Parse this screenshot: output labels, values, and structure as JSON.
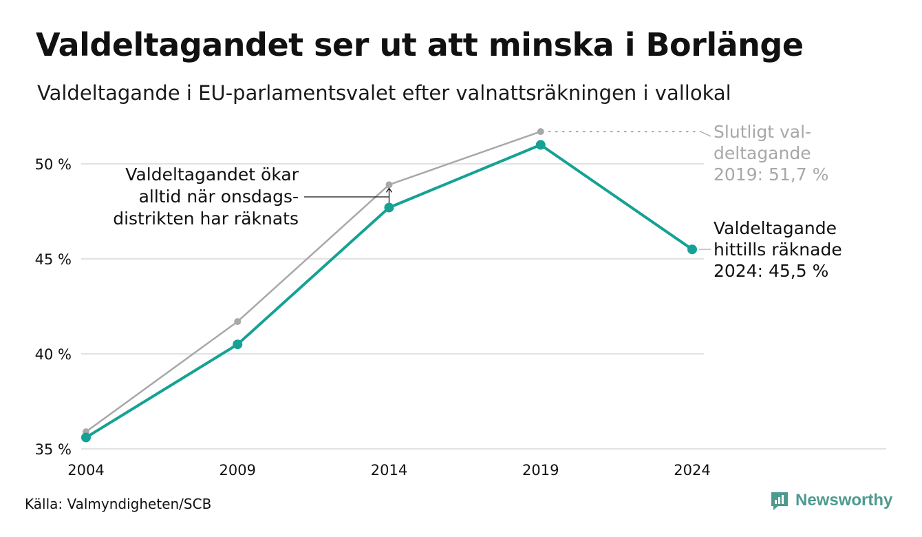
{
  "header": {
    "title": "Valdeltagandet ser ut att minska i Borlänge",
    "subtitle": "Valdeltagande i EU-parlamentsvalet efter valnattsräkningen i vallokal"
  },
  "footer": {
    "source": "Källa: Valmyndigheten/SCB",
    "brand": "Newsworthy"
  },
  "colors": {
    "accent": "#14a294",
    "final_line": "#a8a8a8",
    "grid": "#e2e2e2",
    "brand": "#4e9a8f"
  },
  "chart_data": {
    "type": "line",
    "x": [
      2004,
      2009,
      2014,
      2019,
      2024
    ],
    "ylim": [
      35,
      52
    ],
    "yticks": [
      35,
      40,
      45,
      50
    ],
    "ytick_labels": [
      "35 %",
      "40 %",
      "45 %",
      "50 %"
    ],
    "xtick_labels": [
      "2004",
      "2009",
      "2014",
      "2019",
      "2024"
    ],
    "grid": true,
    "series": [
      {
        "key": "final",
        "values": [
          35.9,
          41.7,
          48.9,
          51.7,
          null
        ]
      },
      {
        "key": "valnatt",
        "values": [
          35.6,
          40.5,
          47.7,
          51.0,
          45.5
        ]
      }
    ],
    "annotations": {
      "note_2014": [
        "Valdeltagandet ökar",
        "alltid när onsdags-",
        "distrikten har räknats"
      ],
      "final_2019": [
        "Slutligt val-",
        "deltagande",
        "2019: 51,7 %"
      ],
      "current_2024": [
        "Valdeltagande",
        "hittills räknade",
        "2024: 45,5 %"
      ]
    }
  }
}
